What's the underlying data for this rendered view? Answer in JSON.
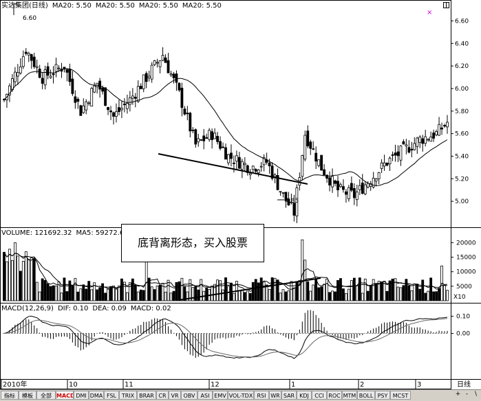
{
  "header": {
    "title": "实达集团(日线)",
    "ma_labels": [
      "MA20: 5.50",
      "MA20: 5.50",
      "MA20: 5.50",
      "MA20: 5.50"
    ]
  },
  "volume_header": {
    "label": "VOLUME: 121692.32",
    "ma": "MA5: 59272.60"
  },
  "macd_header": {
    "label": "MACD(12,26,9)",
    "dif": "DIF: 0.10",
    "dea": "DEA: 0.09",
    "macd": "MACD: 0.02"
  },
  "annotation": "底背离形态，买入股票",
  "price_marks": {
    "high": "6.60",
    "low": "4.85"
  },
  "volume_unit": "X10",
  "x_axis": {
    "labels": [
      "2010年",
      "10",
      "11",
      "12",
      "1",
      "2",
      "3"
    ],
    "period_label": "日线"
  },
  "tabs": [
    "指标",
    "模板",
    "全部",
    "MACD",
    "DMI",
    "DMA",
    "FSL",
    "TRIX",
    "BRAR",
    "CR",
    "VR",
    "OBV",
    "ASI",
    "EMV",
    "VOL-TDX",
    "RSI",
    "WR",
    "SAR",
    "KDJ",
    "CCI",
    "ROC",
    "MTM",
    "BOLL",
    "PSY",
    "MCST"
  ],
  "active_tab": "MACD",
  "nav_buttons": [
    "+",
    "-",
    "\\"
  ],
  "colors": {
    "up": "#000000",
    "down": "#000000",
    "ma": "#000000",
    "mark": "#cc00cc"
  },
  "chart_data": [
    {
      "type": "candlestick",
      "title": "实达集团(日线)",
      "ylim": [
        4.8,
        6.7
      ],
      "y_ticks": [
        5.0,
        5.2,
        5.4,
        5.6,
        5.8,
        6.0,
        6.2,
        6.4,
        6.6
      ],
      "x_labels": [
        "2010年",
        "10",
        "11",
        "12",
        "1",
        "2",
        "3"
      ],
      "annotations": [
        {
          "label": "6.60",
          "value": 6.6
        },
        {
          "label": "4.85",
          "value": 4.85
        }
      ],
      "series": [
        {
          "name": "MA20",
          "note": "moving average line"
        }
      ]
    },
    {
      "type": "bar",
      "title": "VOLUME",
      "ylim": [
        0,
        22000
      ],
      "y_ticks": [
        5000,
        10000,
        15000,
        20000
      ],
      "unit": "X10",
      "legend": [
        "VOLUME: 121692.32",
        "MA5: 59272.60"
      ]
    },
    {
      "type": "line",
      "title": "MACD(12,26,9)",
      "ylim": [
        -0.25,
        0.15
      ],
      "y_ticks": [
        0.0,
        0.1
      ],
      "y_tick_labels": [
        "0.00",
        "0.10"
      ],
      "legend": [
        "DIF: 0.10",
        "DEA: 0.09",
        "MACD: 0.02"
      ]
    }
  ]
}
